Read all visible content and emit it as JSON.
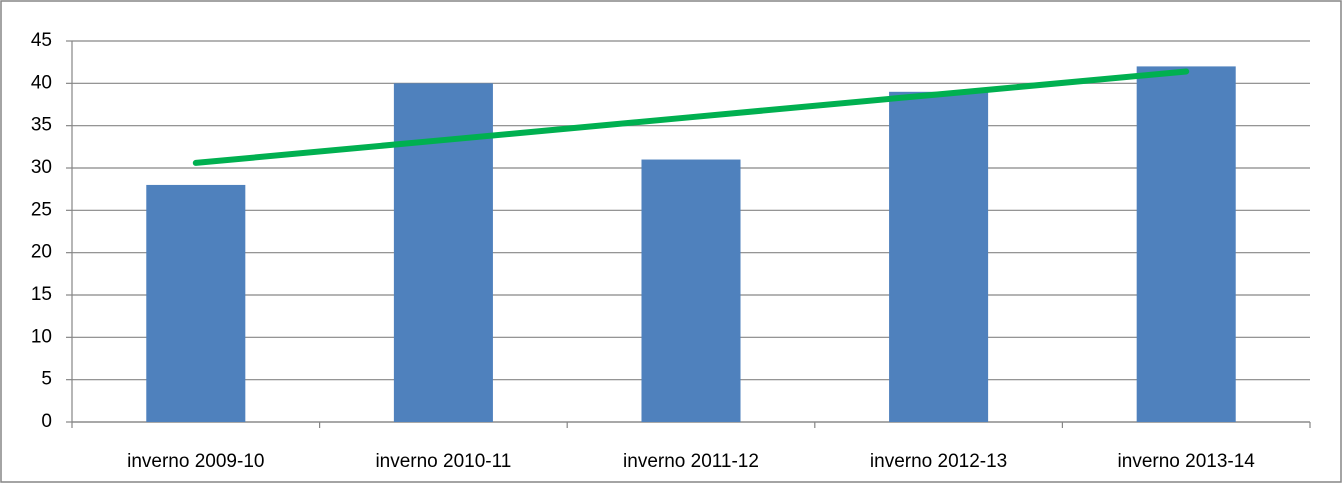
{
  "chart_data": {
    "type": "bar",
    "categories": [
      "inverno 2009-10",
      "inverno 2010-11",
      "inverno 2011-12",
      "inverno 2012-13",
      "inverno 2013-14"
    ],
    "values": [
      28,
      40,
      31,
      39,
      42
    ],
    "color": "#4f81bd",
    "trendline": {
      "color": "#00b050",
      "values": [
        30.6,
        33.3,
        36,
        38.7,
        41.4
      ]
    },
    "ylim": [
      0,
      45
    ],
    "yticks": [
      0,
      5,
      10,
      15,
      20,
      25,
      30,
      35,
      40,
      45
    ],
    "grid": true
  }
}
